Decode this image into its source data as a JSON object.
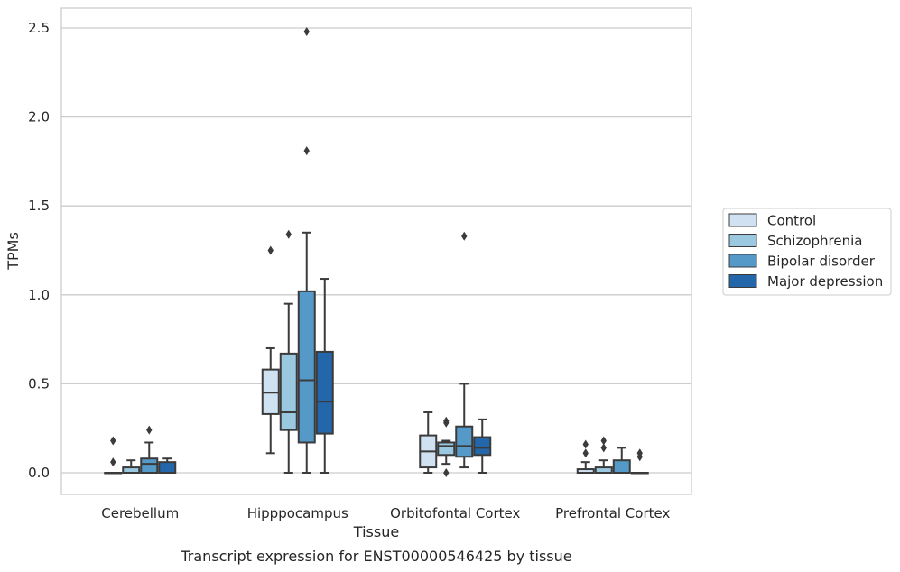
{
  "chart_data": {
    "type": "box",
    "title": "",
    "caption": "Transcript expression for ENST00000546425 by tissue",
    "xlabel": "Tissue",
    "ylabel": "TPMs",
    "ylim": [
      -0.12,
      2.62
    ],
    "yticks": [
      0.0,
      0.5,
      1.0,
      1.5,
      2.0,
      2.5
    ],
    "ytick_labels": [
      "0.0",
      "0.5",
      "1.0",
      "1.5",
      "2.0",
      "2.5"
    ],
    "grid": "horizontal",
    "legend_position": "right",
    "categories": [
      "Cerebellum",
      "Hipppocampus",
      "Orbitofontal Cortex",
      "Prefrontal Cortex"
    ],
    "series": [
      {
        "name": "Control",
        "color": "#d0e1f2",
        "boxes": [
          {
            "whislo": 0.0,
            "q1": 0.0,
            "med": 0.0,
            "q3": 0.0,
            "whishi": 0.0,
            "fliers": [
              0.06,
              0.18
            ]
          },
          {
            "whislo": 0.11,
            "q1": 0.33,
            "med": 0.45,
            "q3": 0.58,
            "whishi": 0.7,
            "fliers": [
              1.25
            ]
          },
          {
            "whislo": 0.0,
            "q1": 0.03,
            "med": 0.12,
            "q3": 0.21,
            "whishi": 0.34,
            "fliers": []
          },
          {
            "whislo": 0.0,
            "q1": 0.0,
            "med": 0.0,
            "q3": 0.02,
            "whishi": 0.06,
            "fliers": [
              0.11,
              0.16
            ]
          }
        ]
      },
      {
        "name": "Schizophrenia",
        "color": "#9ac8e0",
        "boxes": [
          {
            "whislo": 0.0,
            "q1": 0.0,
            "med": 0.0,
            "q3": 0.03,
            "whishi": 0.07,
            "fliers": []
          },
          {
            "whislo": 0.0,
            "q1": 0.24,
            "med": 0.34,
            "q3": 0.67,
            "whishi": 0.95,
            "fliers": [
              1.34
            ]
          },
          {
            "whislo": 0.05,
            "q1": 0.1,
            "med": 0.15,
            "q3": 0.17,
            "whishi": 0.18,
            "fliers": [
              0.28,
              0.29,
              0.0
            ]
          },
          {
            "whislo": 0.0,
            "q1": 0.0,
            "med": 0.0,
            "q3": 0.03,
            "whishi": 0.07,
            "fliers": [
              0.14,
              0.18
            ]
          }
        ]
      },
      {
        "name": "Bipolar disorder",
        "color": "#5599c8",
        "boxes": [
          {
            "whislo": 0.0,
            "q1": 0.0,
            "med": 0.05,
            "q3": 0.08,
            "whishi": 0.17,
            "fliers": [
              0.24
            ]
          },
          {
            "whislo": 0.0,
            "q1": 0.17,
            "med": 0.52,
            "q3": 1.02,
            "whishi": 1.35,
            "fliers": [
              1.81,
              2.48
            ]
          },
          {
            "whislo": 0.03,
            "q1": 0.09,
            "med": 0.15,
            "q3": 0.26,
            "whishi": 0.5,
            "fliers": [
              1.33
            ]
          },
          {
            "whislo": 0.0,
            "q1": 0.0,
            "med": 0.0,
            "q3": 0.07,
            "whishi": 0.14,
            "fliers": []
          }
        ]
      },
      {
        "name": "Major depression",
        "color": "#2366a9",
        "boxes": [
          {
            "whislo": 0.0,
            "q1": 0.0,
            "med": 0.0,
            "q3": 0.06,
            "whishi": 0.08,
            "fliers": []
          },
          {
            "whislo": 0.0,
            "q1": 0.22,
            "med": 0.4,
            "q3": 0.68,
            "whishi": 1.09,
            "fliers": []
          },
          {
            "whislo": 0.0,
            "q1": 0.1,
            "med": 0.14,
            "q3": 0.2,
            "whishi": 0.3,
            "fliers": []
          },
          {
            "whislo": 0.0,
            "q1": 0.0,
            "med": 0.0,
            "q3": 0.0,
            "whishi": 0.0,
            "fliers": [
              0.09,
              0.11
            ]
          }
        ]
      }
    ]
  }
}
